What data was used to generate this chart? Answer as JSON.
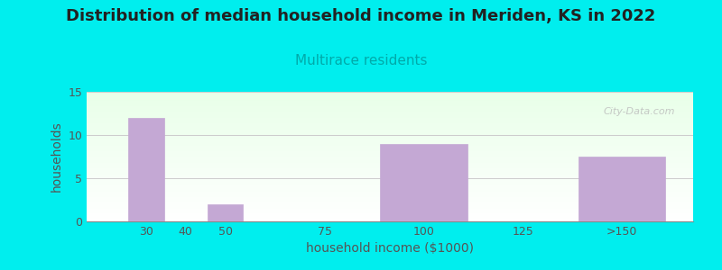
{
  "title": "Distribution of median household income in Meriden, KS in 2022",
  "subtitle": "Multirace residents",
  "xlabel": "household income ($1000)",
  "ylabel": "households",
  "background_color": "#00EEEE",
  "bar_color": "#C4A8D4",
  "values": [
    12,
    0,
    2,
    0,
    9,
    0,
    7.5
  ],
  "bar_positions": [
    30,
    40,
    50,
    75,
    100,
    125,
    150
  ],
  "bar_widths": [
    9,
    9,
    9,
    22,
    22,
    22,
    22
  ],
  "ylim": [
    0,
    15
  ],
  "yticks": [
    0,
    5,
    10,
    15
  ],
  "xlim": [
    15,
    168
  ],
  "xtick_positions": [
    30,
    40,
    50,
    75,
    100,
    125,
    150
  ],
  "xtick_labels": [
    "30",
    "40",
    "50",
    "75",
    "100",
    "125",
    ">150"
  ],
  "title_fontsize": 13,
  "subtitle_fontsize": 11,
  "subtitle_color": "#00AAAA",
  "title_color": "#222222",
  "axis_label_fontsize": 10,
  "tick_fontsize": 9,
  "tick_color": "#555555",
  "axis_label_color": "#555555",
  "watermark": "City-Data.com",
  "gradient_top": "#e8ffe8",
  "gradient_bottom": "#ffffff"
}
